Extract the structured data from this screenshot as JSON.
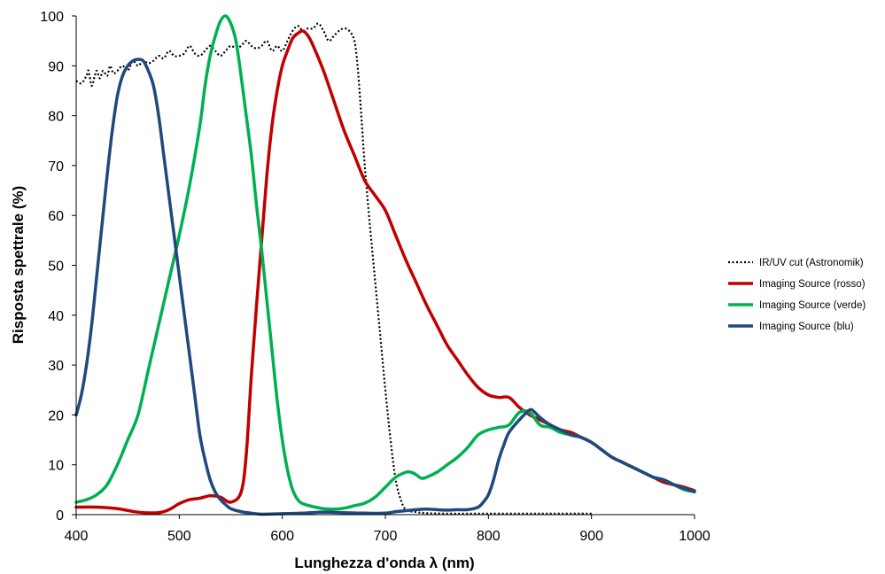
{
  "chart_data": {
    "type": "line",
    "title": "",
    "xlabel": "Lunghezza d'onda λ (nm)",
    "ylabel": "Risposta spettrale (%)",
    "xlim": [
      400,
      1000
    ],
    "ylim": [
      0,
      100
    ],
    "x_ticks": [
      "400",
      "500",
      "600",
      "700",
      "800",
      "900",
      "1000"
    ],
    "y_ticks": [
      "0",
      "10",
      "20",
      "30",
      "40",
      "50",
      "60",
      "70",
      "80",
      "90",
      "100"
    ],
    "grid": false,
    "legend_position": "right",
    "series": [
      {
        "name": "IR/UV cut (Astronomik)",
        "color": "#000000",
        "style": "dotted",
        "points": [
          [
            400,
            87
          ],
          [
            405,
            86.5
          ],
          [
            410,
            88
          ],
          [
            412,
            89
          ],
          [
            415,
            86
          ],
          [
            418,
            88
          ],
          [
            420,
            89
          ],
          [
            423,
            87.5
          ],
          [
            426,
            89
          ],
          [
            430,
            88
          ],
          [
            433,
            90
          ],
          [
            436,
            88.5
          ],
          [
            440,
            89
          ],
          [
            445,
            90
          ],
          [
            450,
            89
          ],
          [
            455,
            91
          ],
          [
            460,
            90
          ],
          [
            465,
            91
          ],
          [
            470,
            90.5
          ],
          [
            475,
            91
          ],
          [
            480,
            92
          ],
          [
            485,
            91.5
          ],
          [
            490,
            93
          ],
          [
            495,
            92
          ],
          [
            500,
            92
          ],
          [
            505,
            92.5
          ],
          [
            510,
            94
          ],
          [
            515,
            92.5
          ],
          [
            520,
            92
          ],
          [
            525,
            93
          ],
          [
            530,
            94
          ],
          [
            535,
            93
          ],
          [
            540,
            92
          ],
          [
            545,
            93
          ],
          [
            550,
            94
          ],
          [
            555,
            93.5
          ],
          [
            560,
            94
          ],
          [
            565,
            95
          ],
          [
            570,
            94
          ],
          [
            575,
            93.5
          ],
          [
            580,
            94
          ],
          [
            585,
            95
          ],
          [
            590,
            93
          ],
          [
            595,
            94
          ],
          [
            600,
            93
          ],
          [
            605,
            95
          ],
          [
            610,
            97
          ],
          [
            615,
            98
          ],
          [
            620,
            97
          ],
          [
            625,
            97.5
          ],
          [
            630,
            97.5
          ],
          [
            635,
            98.5
          ],
          [
            640,
            97
          ],
          [
            645,
            95
          ],
          [
            650,
            96
          ],
          [
            655,
            97
          ],
          [
            660,
            97.5
          ],
          [
            665,
            97
          ],
          [
            670,
            95
          ],
          [
            673,
            90
          ],
          [
            676,
            82
          ],
          [
            680,
            70
          ],
          [
            685,
            58
          ],
          [
            690,
            47
          ],
          [
            695,
            36
          ],
          [
            700,
            25
          ],
          [
            705,
            15
          ],
          [
            710,
            7
          ],
          [
            715,
            3
          ],
          [
            720,
            1
          ],
          [
            730,
            0.5
          ],
          [
            740,
            0.3
          ],
          [
            760,
            0.2
          ],
          [
            800,
            0.2
          ],
          [
            850,
            0.2
          ],
          [
            900,
            0.2
          ]
        ]
      },
      {
        "name": "Imaging Source (rosso)",
        "color": "#c00000",
        "style": "solid",
        "points": [
          [
            400,
            1.5
          ],
          [
            420,
            1.5
          ],
          [
            440,
            1.2
          ],
          [
            460,
            0.5
          ],
          [
            480,
            0.4
          ],
          [
            490,
            1
          ],
          [
            500,
            2.2
          ],
          [
            510,
            3
          ],
          [
            520,
            3.3
          ],
          [
            530,
            3.8
          ],
          [
            540,
            3.5
          ],
          [
            550,
            2.5
          ],
          [
            560,
            4.5
          ],
          [
            565,
            12
          ],
          [
            570,
            28
          ],
          [
            575,
            42
          ],
          [
            580,
            55
          ],
          [
            585,
            68
          ],
          [
            590,
            78
          ],
          [
            595,
            85
          ],
          [
            600,
            90
          ],
          [
            605,
            93
          ],
          [
            610,
            95.5
          ],
          [
            615,
            96.5
          ],
          [
            620,
            97
          ],
          [
            625,
            96
          ],
          [
            630,
            94
          ],
          [
            640,
            89
          ],
          [
            650,
            83
          ],
          [
            660,
            77
          ],
          [
            670,
            72
          ],
          [
            680,
            67
          ],
          [
            690,
            64
          ],
          [
            700,
            61
          ],
          [
            710,
            56
          ],
          [
            720,
            51
          ],
          [
            730,
            46.5
          ],
          [
            740,
            42
          ],
          [
            750,
            38
          ],
          [
            760,
            34
          ],
          [
            770,
            31
          ],
          [
            780,
            28
          ],
          [
            790,
            25.5
          ],
          [
            800,
            24
          ],
          [
            810,
            23.5
          ],
          [
            820,
            23.5
          ],
          [
            830,
            21.5
          ],
          [
            840,
            20
          ],
          [
            850,
            19
          ],
          [
            860,
            18
          ],
          [
            870,
            17
          ],
          [
            880,
            16.5
          ],
          [
            890,
            15.5
          ],
          [
            900,
            14.5
          ],
          [
            910,
            13
          ],
          [
            920,
            11.5
          ],
          [
            930,
            10.5
          ],
          [
            940,
            9.5
          ],
          [
            950,
            8.5
          ],
          [
            960,
            7.5
          ],
          [
            970,
            6.5
          ],
          [
            980,
            6
          ],
          [
            990,
            5.5
          ],
          [
            1000,
            4.8
          ]
        ]
      },
      {
        "name": "Imaging Source (verde)",
        "color": "#00b050",
        "style": "solid",
        "points": [
          [
            400,
            2.5
          ],
          [
            410,
            3
          ],
          [
            420,
            4
          ],
          [
            430,
            6
          ],
          [
            440,
            10
          ],
          [
            450,
            15
          ],
          [
            460,
            20
          ],
          [
            470,
            29
          ],
          [
            480,
            38
          ],
          [
            490,
            47
          ],
          [
            500,
            56
          ],
          [
            510,
            66
          ],
          [
            520,
            78
          ],
          [
            525,
            86
          ],
          [
            530,
            92
          ],
          [
            535,
            96
          ],
          [
            540,
            99
          ],
          [
            545,
            100
          ],
          [
            550,
            98.5
          ],
          [
            555,
            95
          ],
          [
            560,
            88
          ],
          [
            565,
            80
          ],
          [
            570,
            72
          ],
          [
            575,
            62
          ],
          [
            580,
            53
          ],
          [
            585,
            43
          ],
          [
            590,
            33
          ],
          [
            595,
            23
          ],
          [
            600,
            15
          ],
          [
            605,
            9
          ],
          [
            610,
            5
          ],
          [
            615,
            3
          ],
          [
            620,
            2.2
          ],
          [
            630,
            1.6
          ],
          [
            640,
            1.2
          ],
          [
            650,
            1.1
          ],
          [
            660,
            1.3
          ],
          [
            670,
            1.8
          ],
          [
            680,
            2.3
          ],
          [
            690,
            3.5
          ],
          [
            700,
            5.5
          ],
          [
            710,
            7.5
          ],
          [
            720,
            8.5
          ],
          [
            725,
            8.5
          ],
          [
            730,
            8
          ],
          [
            735,
            7.3
          ],
          [
            740,
            7.5
          ],
          [
            750,
            8.5
          ],
          [
            760,
            10
          ],
          [
            770,
            11.5
          ],
          [
            780,
            13.5
          ],
          [
            790,
            16
          ],
          [
            800,
            17
          ],
          [
            810,
            17.5
          ],
          [
            820,
            18
          ],
          [
            830,
            20.5
          ],
          [
            840,
            20.5
          ],
          [
            850,
            18
          ],
          [
            860,
            17.5
          ],
          [
            870,
            16.5
          ],
          [
            880,
            16
          ],
          [
            890,
            15.5
          ],
          [
            900,
            14.5
          ],
          [
            910,
            13
          ],
          [
            920,
            11.5
          ],
          [
            930,
            10.5
          ],
          [
            940,
            9.5
          ],
          [
            950,
            8.5
          ],
          [
            960,
            7.5
          ],
          [
            970,
            7
          ],
          [
            980,
            6
          ],
          [
            990,
            5
          ],
          [
            1000,
            4.6
          ]
        ]
      },
      {
        "name": "Imaging Source (blu)",
        "color": "#1f497d",
        "style": "solid",
        "points": [
          [
            400,
            20
          ],
          [
            405,
            24
          ],
          [
            410,
            30
          ],
          [
            415,
            38
          ],
          [
            420,
            48
          ],
          [
            425,
            58
          ],
          [
            430,
            68
          ],
          [
            435,
            77
          ],
          [
            440,
            84
          ],
          [
            445,
            88
          ],
          [
            450,
            90
          ],
          [
            455,
            91
          ],
          [
            460,
            91.3
          ],
          [
            465,
            91
          ],
          [
            470,
            89
          ],
          [
            475,
            86
          ],
          [
            480,
            80
          ],
          [
            485,
            72
          ],
          [
            490,
            64
          ],
          [
            495,
            56
          ],
          [
            500,
            48
          ],
          [
            505,
            40
          ],
          [
            510,
            32
          ],
          [
            515,
            24
          ],
          [
            520,
            16
          ],
          [
            525,
            11
          ],
          [
            530,
            7
          ],
          [
            535,
            4.5
          ],
          [
            540,
            3
          ],
          [
            545,
            2
          ],
          [
            550,
            1.2
          ],
          [
            560,
            0.6
          ],
          [
            570,
            0.3
          ],
          [
            580,
            0.1
          ],
          [
            600,
            0.2
          ],
          [
            620,
            0.3
          ],
          [
            640,
            0.5
          ],
          [
            660,
            0.4
          ],
          [
            680,
            0.3
          ],
          [
            700,
            0.3
          ],
          [
            710,
            0.6
          ],
          [
            720,
            0.8
          ],
          [
            730,
            1
          ],
          [
            740,
            1.1
          ],
          [
            750,
            1
          ],
          [
            760,
            0.9
          ],
          [
            770,
            1
          ],
          [
            780,
            1
          ],
          [
            790,
            1.5
          ],
          [
            795,
            2.5
          ],
          [
            800,
            4
          ],
          [
            805,
            7
          ],
          [
            810,
            11
          ],
          [
            815,
            14
          ],
          [
            820,
            16.5
          ],
          [
            830,
            19
          ],
          [
            840,
            21
          ],
          [
            845,
            20.5
          ],
          [
            850,
            19.5
          ],
          [
            860,
            18
          ],
          [
            870,
            17
          ],
          [
            880,
            16
          ],
          [
            890,
            15.5
          ],
          [
            900,
            14.5
          ],
          [
            910,
            13
          ],
          [
            920,
            11.5
          ],
          [
            930,
            10.5
          ],
          [
            940,
            9.5
          ],
          [
            950,
            8.5
          ],
          [
            960,
            7.5
          ],
          [
            970,
            7
          ],
          [
            980,
            6
          ],
          [
            990,
            5.3
          ],
          [
            1000,
            4.6
          ]
        ]
      }
    ]
  }
}
